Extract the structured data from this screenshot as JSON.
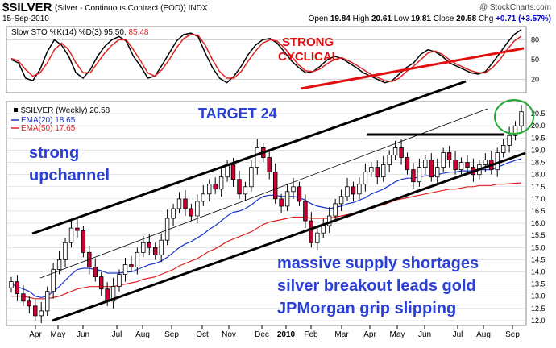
{
  "header": {
    "symbol": "$SILVER",
    "description": "(Silver - Continuous Contract (EOD)) INDX",
    "date": "15-Sep-2010",
    "watermark": "@ StockCharts.com",
    "open_label": "Open",
    "open": "19.84",
    "high_label": "High",
    "high": "20.61",
    "low_label": "Low",
    "low": "19.81",
    "close_label": "Close",
    "close": "20.58",
    "chg_label": "Chg",
    "chg": "+0.71 (+3.57%)"
  },
  "indicator_panel": {
    "legend_prefix": "Slow STO %K(14) %D(3)",
    "k_value": "95.50",
    "d_value": "85.48",
    "annotation_line1": "STRONG",
    "annotation_line2": "CYCLICAL"
  },
  "price_panel": {
    "legend_title": "$SILVER (Weekly) 20.58",
    "ema20_label": "EMA(20) 18.65",
    "ema50_label": "EMA(50) 17.65",
    "annotation_target": "TARGET 24",
    "annotation_channel_line1": "strong",
    "annotation_channel_line2": "upchannel",
    "annotation_notes": [
      "massive supply shortages",
      "silver breakout leads gold",
      "JPMorgan grip slipping"
    ]
  },
  "colors": {
    "up_candle": "#ffffff",
    "down_candle": "#cc0033",
    "candle_outline": "#000000",
    "ema20": "#1a33cc",
    "ema50": "#dd2222",
    "sto_k": "#000000",
    "sto_d": "#dd2222",
    "annotation_blue": "#2a3fd4",
    "annotation_red": "#e01010",
    "breakout_circle": "#22aa33"
  },
  "chart_data": [
    {
      "type": "line",
      "title": "Slow STO %K(14) %D(3)",
      "ylim": [
        0,
        100
      ],
      "y_ticks": [
        "20",
        "50",
        "80"
      ],
      "grid": true,
      "x_ticks": [
        "Apr",
        "May",
        "Jun",
        "Jul",
        "Aug",
        "Sep",
        "Oct",
        "Nov",
        "Dec",
        "2010",
        "Feb",
        "Mar",
        "Apr",
        "May",
        "Jun",
        "Jul",
        "Aug",
        "Sep"
      ],
      "series": [
        {
          "name": "%K(14)",
          "values": [
            50,
            45,
            22,
            18,
            35,
            62,
            80,
            72,
            55,
            30,
            22,
            35,
            55,
            70,
            80,
            85,
            78,
            55,
            40,
            22,
            25,
            42,
            60,
            78,
            88,
            90,
            85,
            60,
            38,
            22,
            15,
            25,
            40,
            58,
            72,
            80,
            82,
            75,
            62,
            48,
            38,
            30,
            32,
            40,
            50,
            55,
            52,
            45,
            38,
            30,
            25,
            20,
            15,
            18,
            28,
            38,
            45,
            58,
            65,
            62,
            55,
            45,
            40,
            35,
            30,
            28,
            32,
            45,
            60,
            75,
            88,
            95.5
          ]
        },
        {
          "name": "%D(3)",
          "values": [
            52,
            48,
            35,
            25,
            30,
            45,
            65,
            75,
            65,
            45,
            30,
            30,
            45,
            60,
            72,
            80,
            80,
            65,
            48,
            30,
            25,
            35,
            50,
            68,
            82,
            88,
            87,
            72,
            50,
            32,
            22,
            22,
            32,
            48,
            63,
            75,
            80,
            78,
            68,
            55,
            42,
            33,
            32,
            36,
            44,
            50,
            53,
            48,
            42,
            35,
            28,
            23,
            18,
            17,
            22,
            32,
            40,
            50,
            60,
            63,
            58,
            50,
            43,
            38,
            33,
            30,
            30,
            38,
            50,
            65,
            78,
            85.48
          ]
        }
      ]
    },
    {
      "type": "candlestick",
      "title": "$SILVER (Weekly) 20.58",
      "ylim": [
        11.8,
        21.0
      ],
      "y_ticks": [
        "12.0",
        "12.5",
        "13.0",
        "13.5",
        "14.0",
        "14.5",
        "15.0",
        "15.5",
        "16.0",
        "16.5",
        "17.0",
        "17.5",
        "18.0",
        "18.5",
        "19.0",
        "19.5",
        "20.0",
        "20.5"
      ],
      "grid": true,
      "x_ticks": [
        "Apr",
        "May",
        "Jun",
        "Jul",
        "Aug",
        "Sep",
        "Oct",
        "Nov",
        "Dec",
        "2010",
        "Feb",
        "Mar",
        "Apr",
        "May",
        "Jun",
        "Jul",
        "Aug",
        "Sep"
      ],
      "close": [
        13.6,
        13.1,
        12.8,
        12.6,
        12.2,
        12.4,
        13.2,
        14.1,
        14.5,
        15.2,
        15.8,
        15.7,
        14.8,
        14.2,
        13.8,
        13.3,
        12.8,
        13.4,
        13.9,
        14.3,
        14.2,
        14.8,
        15.2,
        15.0,
        14.7,
        15.3,
        16.2,
        16.6,
        17.0,
        16.6,
        16.3,
        16.9,
        17.2,
        17.6,
        17.4,
        17.9,
        18.4,
        17.8,
        17.2,
        17.5,
        18.3,
        19.1,
        18.7,
        18.1,
        17.0,
        16.7,
        17.3,
        17.5,
        16.9,
        16.1,
        15.2,
        15.6,
        15.9,
        16.3,
        16.8,
        17.1,
        17.5,
        17.2,
        17.6,
        18.1,
        18.3,
        17.9,
        18.4,
        18.8,
        19.1,
        18.7,
        18.2,
        17.7,
        18.3,
        18.6,
        17.9,
        18.3,
        18.9,
        18.6,
        18.2,
        18.5,
        18.3,
        18.0,
        18.4,
        18.6,
        18.2,
        18.9,
        19.2,
        19.6,
        20.0,
        20.58
      ],
      "ema20": [
        13.5,
        13.4,
        13.3,
        13.2,
        13.0,
        12.95,
        13.0,
        13.2,
        13.4,
        13.65,
        13.9,
        14.1,
        14.15,
        14.15,
        14.1,
        14.05,
        13.95,
        13.95,
        13.95,
        14.0,
        14.0,
        14.1,
        14.2,
        14.3,
        14.35,
        14.45,
        14.6,
        14.8,
        15.0,
        15.15,
        15.25,
        15.4,
        15.55,
        15.75,
        15.9,
        16.1,
        16.3,
        16.45,
        16.5,
        16.6,
        16.75,
        16.95,
        17.1,
        17.15,
        17.15,
        17.1,
        17.1,
        17.1,
        17.05,
        16.95,
        16.8,
        16.7,
        16.65,
        16.6,
        16.65,
        16.7,
        16.8,
        16.85,
        16.95,
        17.05,
        17.2,
        17.3,
        17.4,
        17.55,
        17.7,
        17.8,
        17.85,
        17.85,
        17.9,
        17.95,
        17.95,
        18.0,
        18.05,
        18.1,
        18.1,
        18.15,
        18.15,
        18.15,
        18.2,
        18.2,
        18.2,
        18.3,
        18.4,
        18.5,
        18.58,
        18.65
      ],
      "ema50": [
        13.0,
        13.0,
        13.0,
        12.95,
        12.9,
        12.9,
        12.9,
        12.95,
        13.0,
        13.1,
        13.2,
        13.3,
        13.35,
        13.4,
        13.4,
        13.4,
        13.4,
        13.4,
        13.45,
        13.5,
        13.55,
        13.6,
        13.7,
        13.75,
        13.8,
        13.9,
        14.0,
        14.1,
        14.25,
        14.35,
        14.45,
        14.55,
        14.7,
        14.85,
        14.95,
        15.1,
        15.25,
        15.35,
        15.45,
        15.55,
        15.65,
        15.8,
        15.95,
        16.05,
        16.1,
        16.15,
        16.2,
        16.25,
        16.25,
        16.25,
        16.2,
        16.2,
        16.2,
        16.2,
        16.25,
        16.3,
        16.35,
        16.4,
        16.45,
        16.55,
        16.6,
        16.7,
        16.75,
        16.85,
        16.95,
        17.0,
        17.05,
        17.1,
        17.15,
        17.2,
        17.25,
        17.3,
        17.35,
        17.4,
        17.4,
        17.45,
        17.5,
        17.5,
        17.55,
        17.55,
        17.55,
        17.6,
        17.6,
        17.62,
        17.64,
        17.65
      ]
    }
  ]
}
